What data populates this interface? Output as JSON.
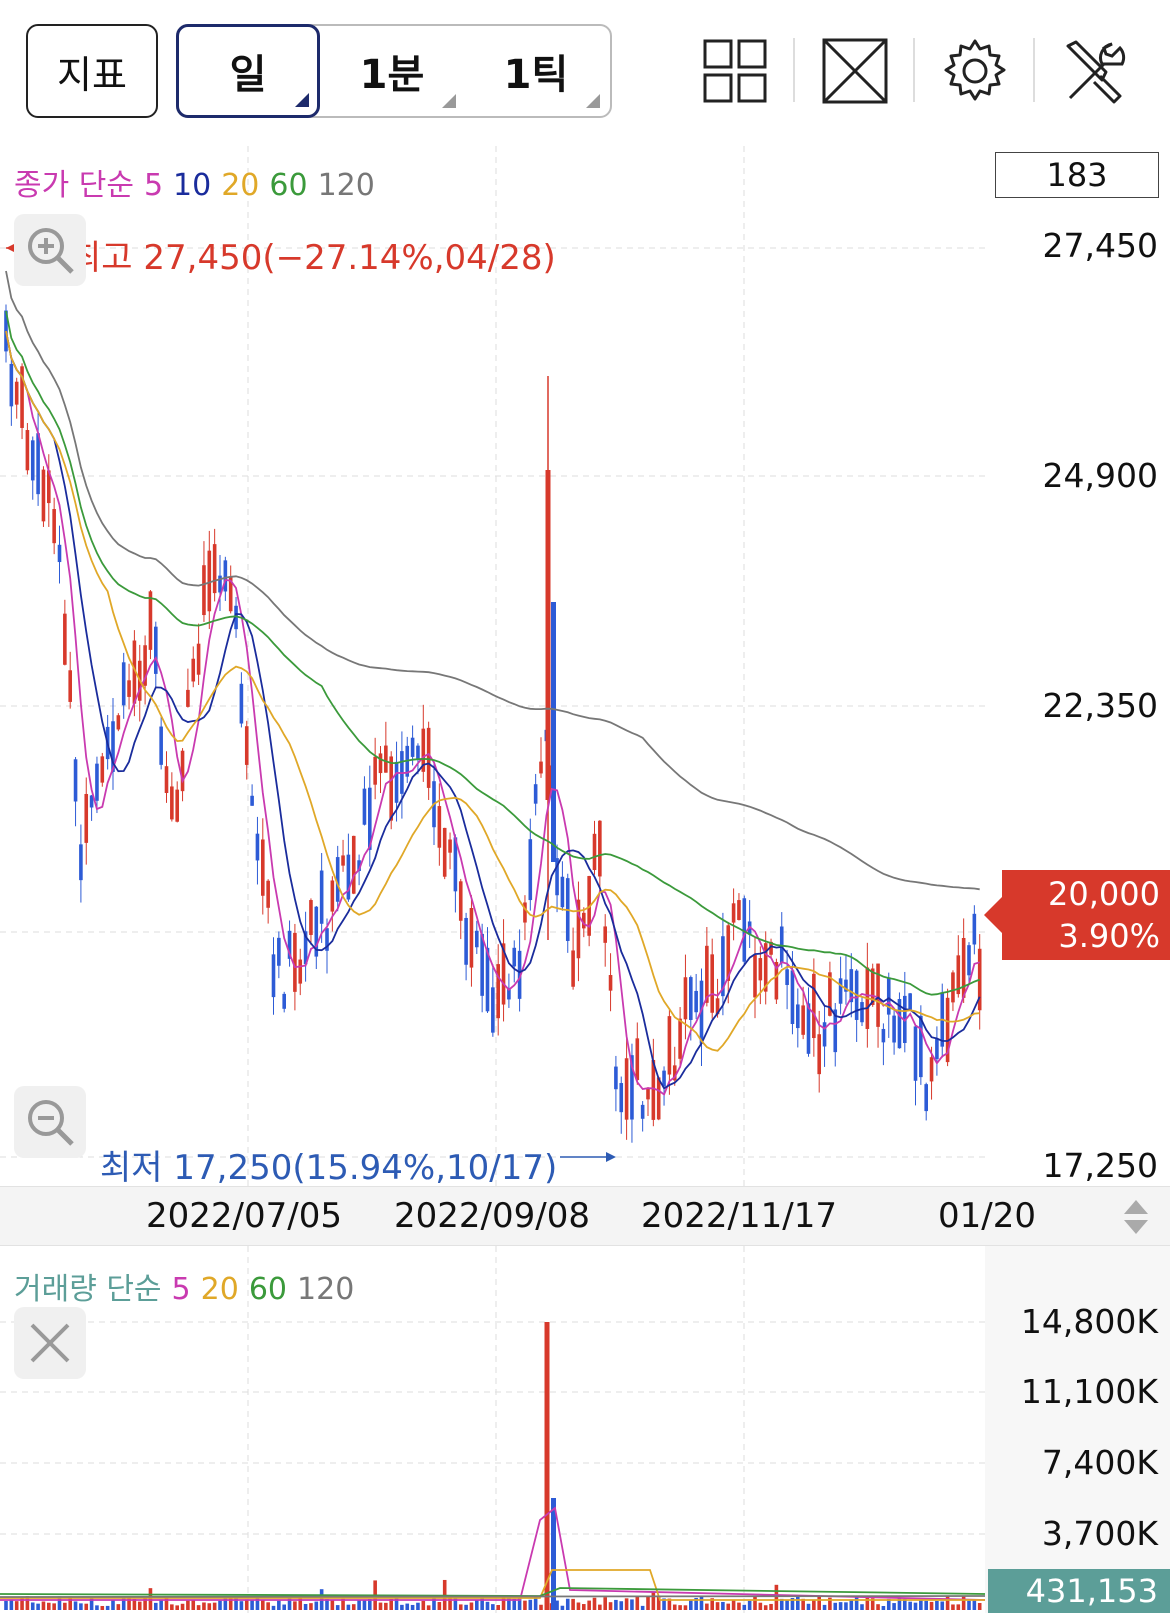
{
  "toolbar": {
    "indicator_label": "지표",
    "periods": [
      {
        "label": "일",
        "active": true
      },
      {
        "label": "1분",
        "active": false
      },
      {
        "label": "1틱",
        "active": false
      }
    ],
    "icons": [
      "layout-grid-icon",
      "fullscreen-icon",
      "gear-icon",
      "tools-icon"
    ]
  },
  "price_panel": {
    "legend": {
      "title": "종가 단순",
      "periods": [
        {
          "label": "5",
          "color": "#c93ab0"
        },
        {
          "label": "10",
          "color": "#1a2c9c"
        },
        {
          "label": "20",
          "color": "#e0a828"
        },
        {
          "label": "60",
          "color": "#3b9a3b"
        },
        {
          "label": "120",
          "color": "#777777"
        }
      ]
    },
    "count": "183",
    "y_ticks": [
      "27,450",
      "24,900",
      "22,350",
      "17,250"
    ],
    "high_label": "최고 27,450(−27.14%,04/28)",
    "low_label": "최저 17,250(15.94%,10/17)",
    "current_price": "20,000",
    "current_change": "3.90%",
    "x_ticks": [
      "2022/07/05",
      "2022/09/08",
      "2022/11/17",
      "01/20"
    ]
  },
  "volume_panel": {
    "legend": {
      "title": "거래량 단순",
      "periods": [
        {
          "label": "5",
          "color": "#c93ab0"
        },
        {
          "label": "20",
          "color": "#e0a828"
        },
        {
          "label": "60",
          "color": "#3b9a3b"
        },
        {
          "label": "120",
          "color": "#777777"
        }
      ]
    },
    "y_ticks": [
      "14,800K",
      "11,100K",
      "7,400K",
      "3,700K"
    ],
    "current_volume": "431,153"
  },
  "colors": {
    "up": "#d7392b",
    "down": "#2d5bd6",
    "volume_badge": "#5c9e98"
  },
  "chart_data": {
    "type": "candlestick",
    "y_range": [
      17250,
      27450
    ],
    "volume_range_k": [
      0,
      14800
    ],
    "series_summary": {
      "high": 27450,
      "low": 17250,
      "last_close": 20000,
      "spike_volume_k": 14800
    }
  }
}
